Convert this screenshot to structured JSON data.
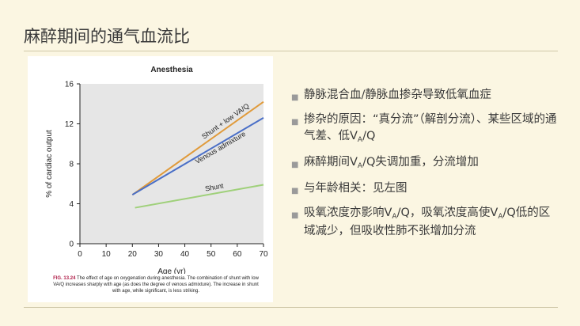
{
  "slide": {
    "title": "麻醉期间的通气血流比"
  },
  "chart_data": {
    "type": "line",
    "title": "Anesthesia",
    "xlabel": "Age (yr)",
    "ylabel": "% of cardiac output",
    "xlim": [
      0,
      70
    ],
    "ylim": [
      0,
      16
    ],
    "xticks": [
      0,
      10,
      20,
      30,
      40,
      50,
      60,
      70
    ],
    "yticks": [
      0,
      4,
      8,
      12,
      16
    ],
    "series": [
      {
        "name": "Shunt + low VA/Q",
        "color": "#e09a3a",
        "x": [
          20,
          70
        ],
        "y": [
          4.9,
          14.2
        ]
      },
      {
        "name": "Venous admixture",
        "color": "#4a6fc7",
        "x": [
          20,
          70
        ],
        "y": [
          4.9,
          12.6
        ]
      },
      {
        "name": "Shunt",
        "color": "#9fd07a",
        "x": [
          21,
          70
        ],
        "y": [
          3.6,
          5.9
        ]
      }
    ]
  },
  "caption": {
    "label": "FIG. 13.24",
    "text": "The effect of age on oxygenation during anesthesia. The combination of shunt with low VA/Q increases sharply with age (as does the degree of venous admixture). The increase in shunt with age, while significant, is less striking."
  },
  "bullets": [
    {
      "parts": [
        "静脉混合血/静脉血掺杂导致低氧血症"
      ]
    },
    {
      "parts": [
        "掺杂的原因：“真分流”（解剖分流）、某些区域的通气差、低V",
        "A",
        "/Q"
      ]
    },
    {
      "parts": [
        "麻醉期间V",
        "A",
        "/Q失调加重，分流增加"
      ]
    },
    {
      "parts": [
        "与年龄相关：见左图"
      ]
    },
    {
      "parts": [
        "吸氧浓度亦影响V",
        "A",
        "/Q，吸氧浓度高使V",
        "A",
        "/Q低的区域减少，但吸收性肺不张增加分流"
      ]
    }
  ],
  "bullet_marker": "■"
}
